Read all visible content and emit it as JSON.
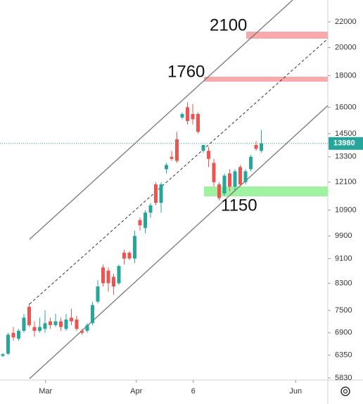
{
  "chart_data": {
    "type": "candlestick",
    "open": [
      6330,
      6380,
      6900,
      6750,
      6950,
      7600,
      7050,
      6950,
      7000,
      7200,
      7100,
      7200,
      7000,
      7300,
      7250,
      6950,
      6950,
      7150,
      7750,
      8800,
      8700,
      8500,
      8300,
      9300,
      9300,
      9100,
      10500,
      10200,
      10800,
      12000,
      11200,
      12700,
      13300,
      14200,
      15400,
      16000,
      15600,
      15600,
      13600,
      13600,
      13000,
      12000,
      11600,
      12500,
      11900,
      12800,
      12100,
      12700,
      13900,
      13600
    ],
    "high": [
      6400,
      6900,
      7050,
      7000,
      7400,
      7700,
      7200,
      7300,
      7500,
      7300,
      7400,
      7300,
      7400,
      7550,
      7350,
      7000,
      7150,
      7750,
      8400,
      8900,
      8800,
      8600,
      8900,
      9400,
      9350,
      10100,
      10600,
      10900,
      11200,
      12100,
      12100,
      13000,
      13600,
      14600,
      15700,
      16300,
      16200,
      15700,
      13900,
      13800,
      13200,
      12100,
      12500,
      12700,
      12700,
      12900,
      12700,
      13400,
      14100,
      14700
    ],
    "low": [
      6300,
      6350,
      6700,
      6700,
      6900,
      7050,
      6800,
      6900,
      6900,
      7000,
      7050,
      6950,
      6950,
      7100,
      6950,
      6850,
      6900,
      7100,
      7700,
      8200,
      8050,
      7950,
      8250,
      8900,
      9050,
      8950,
      10100,
      10000,
      10600,
      11100,
      10800,
      12500,
      13100,
      13000,
      15300,
      15000,
      15000,
      14500,
      13500,
      12800,
      11900,
      11300,
      11500,
      11700,
      11700,
      11900,
      12000,
      12600,
      13600,
      13500
    ],
    "close": [
      6370,
      6850,
      6780,
      6950,
      7300,
      7100,
      6950,
      7050,
      7150,
      7100,
      7200,
      7050,
      7250,
      7200,
      7000,
      6900,
      7100,
      7650,
      8200,
      8300,
      8300,
      8200,
      8850,
      9100,
      9100,
      9900,
      10300,
      10800,
      11100,
      11200,
      12000,
      12900,
      13200,
      13100,
      15600,
      15200,
      15300,
      14600,
      13900,
      13200,
      12100,
      11400,
      12400,
      11900,
      12600,
      12000,
      12600,
      13300,
      13700,
      13980
    ],
    "up_color": "#26a69a",
    "down_color": "#ef5350",
    "log_scale": true,
    "ylim": [
      5784,
      23870
    ],
    "yticks": [
      5830,
      6350,
      6900,
      7500,
      8300,
      9100,
      9900,
      10900,
      12100,
      13300,
      14500,
      16000,
      18000,
      20000,
      22000
    ],
    "xlim": [
      -0.53,
      61.6
    ],
    "xticks": [
      {
        "value": 8.1,
        "label": "Mar"
      },
      {
        "value": 25.3,
        "label": "Apr"
      },
      {
        "value": 36.1,
        "label": "6"
      },
      {
        "value": 55.5,
        "label": "Jun"
      }
    ],
    "last_price": 13980,
    "annotations": [
      "2100",
      "1760",
      "1150"
    ]
  }
}
